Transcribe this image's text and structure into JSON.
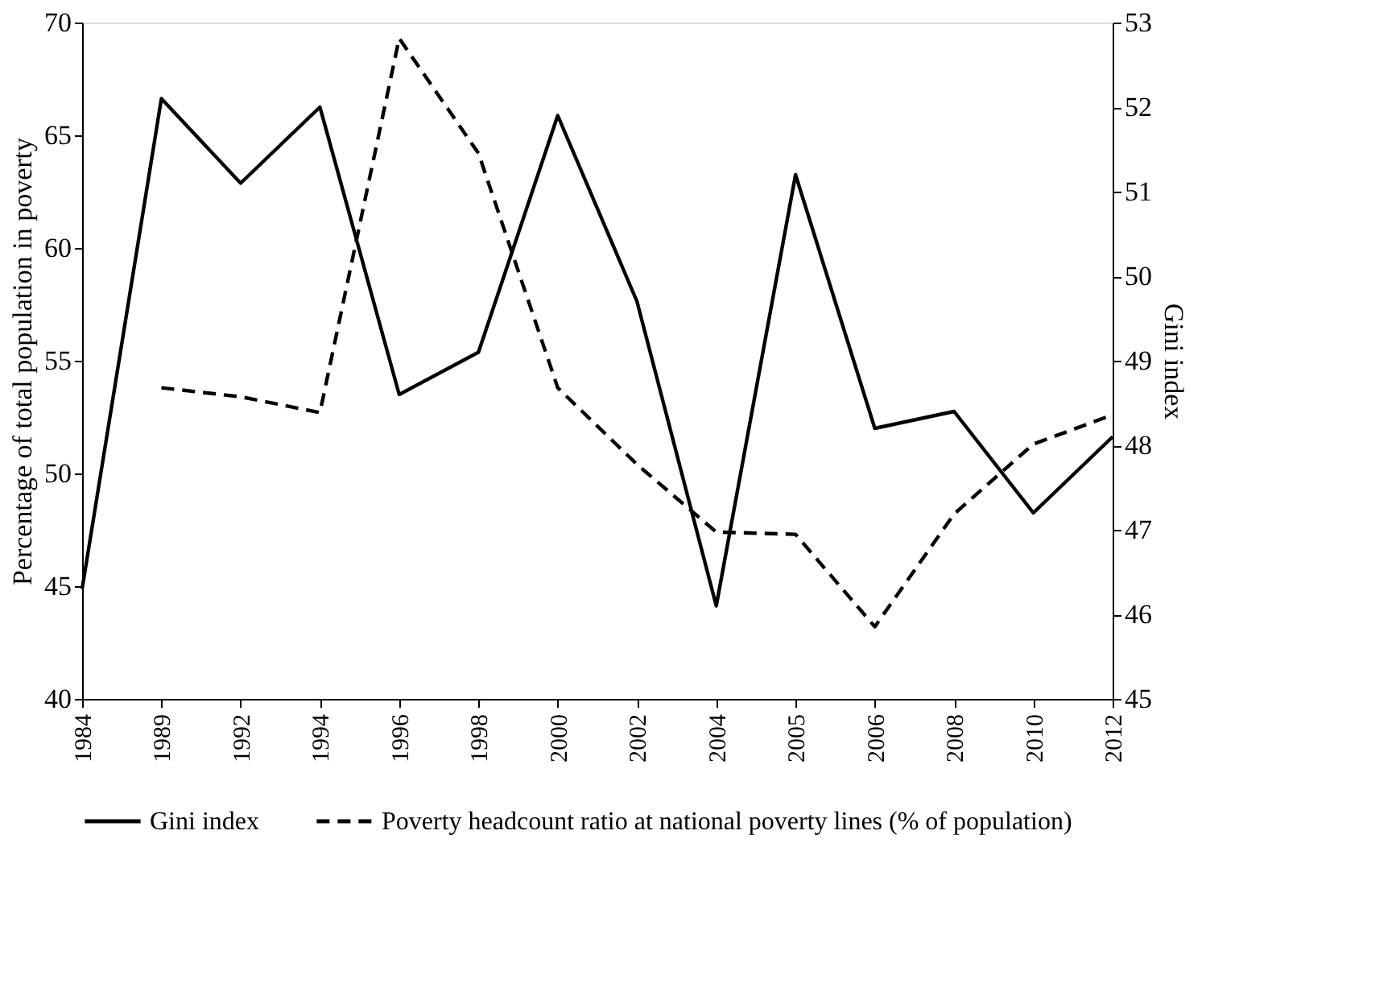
{
  "chart_data": {
    "type": "line",
    "categories": [
      "1984",
      "1989",
      "1992",
      "1994",
      "1996",
      "1998",
      "2000",
      "2002",
      "2004",
      "2005",
      "2006",
      "2008",
      "2010",
      "2012"
    ],
    "ylabel": "Percentage of total population in poverty",
    "y2label": "Gini index",
    "ylim": [
      40,
      70
    ],
    "yticks": [
      40,
      45,
      50,
      55,
      60,
      65,
      70
    ],
    "y2lim": [
      45,
      53
    ],
    "y2ticks": [
      45,
      46,
      47,
      48,
      49,
      50,
      51,
      52,
      53
    ],
    "grid": false,
    "legend": "bottom",
    "marker": "none",
    "series": [
      {
        "name": "Gini index",
        "color": "#000000",
        "axis": "y2",
        "line_style": "solid",
        "values": [
          46.3,
          52.1,
          51.1,
          52.0,
          48.6,
          49.1,
          51.9,
          49.7,
          46.1,
          51.2,
          48.2,
          48.4,
          47.2,
          48.1
        ]
      },
      {
        "name": "Poverty headcount ratio at national poverty lines (% of population)",
        "color": "#000000",
        "axis": "y",
        "line_style": "dashed",
        "values": [
          null,
          53.8,
          53.4,
          52.7,
          69.3,
          64.2,
          53.8,
          50.4,
          47.4,
          47.3,
          43.2,
          48.2,
          51.3,
          52.6
        ]
      }
    ]
  }
}
